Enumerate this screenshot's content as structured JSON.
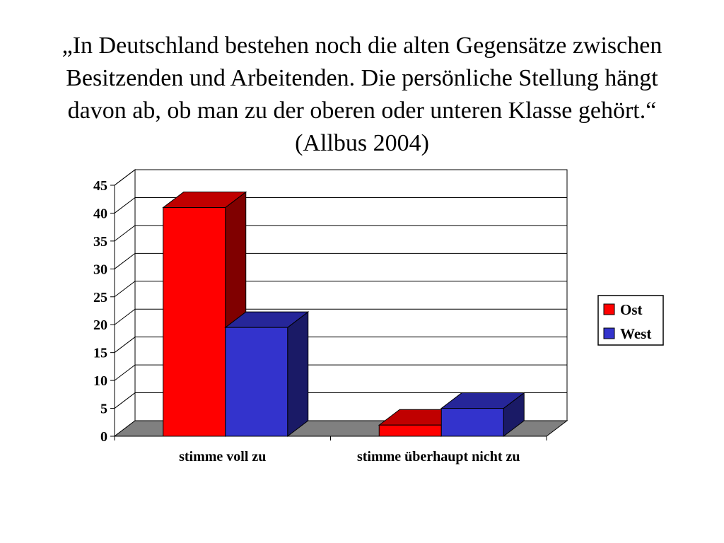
{
  "title": "„In Deutschland bestehen noch die alten Gegensätze zwischen Besitzenden und Arbeitenden. Die persönliche Stellung hängt davon ab, ob man zu der oberen oder unteren Klasse gehört.“ (Allbus 2004)",
  "chart_data": {
    "type": "bar",
    "style": "3d-clustered",
    "title": "„In Deutschland bestehen noch die alten Gegensätze zwischen Besitzenden und Arbeitenden. Die persönliche Stellung hängt davon ab, ob man zu der oberen oder unteren Klasse gehört.“ (Allbus 2004)",
    "xlabel": "",
    "ylabel": "",
    "categories": [
      "stimme voll zu",
      "stimme überhaupt nicht zu"
    ],
    "series": [
      {
        "name": "Ost",
        "values": [
          41,
          2
        ],
        "color": "#ff0000",
        "side_color": "#800000",
        "top_color": "#c00000"
      },
      {
        "name": "West",
        "values": [
          19.5,
          5
        ],
        "color": "#3333cc",
        "side_color": "#1a1a66",
        "top_color": "#262699"
      }
    ],
    "ylim": [
      0,
      45
    ],
    "yticks": [
      0,
      5,
      10,
      15,
      20,
      25,
      30,
      35,
      40,
      45
    ],
    "grid": true,
    "legend_position": "right",
    "floor_color": "#808080",
    "wall_color": "#ffffff"
  }
}
